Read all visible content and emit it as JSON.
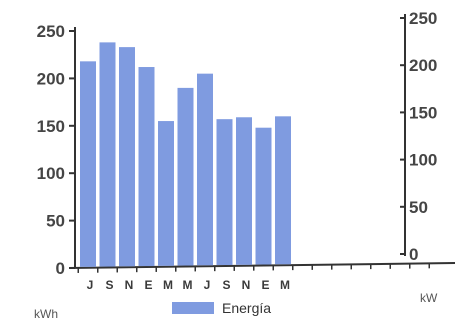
{
  "chart_data": {
    "type": "bar",
    "categories": [
      "J",
      "S",
      "N",
      "E",
      "M",
      "M",
      "J",
      "S",
      "N",
      "E",
      "M"
    ],
    "series": [
      {
        "name": "Energía",
        "values": [
          218,
          238,
          233,
          212,
          155,
          190,
          205,
          157,
          159,
          148,
          160
        ],
        "color": "#7f9be0"
      }
    ],
    "y_left": {
      "label": "kWh",
      "ticks": [
        0,
        50,
        100,
        150,
        200,
        250
      ],
      "ylim": [
        0,
        250
      ]
    },
    "y_right": {
      "label": "kW",
      "ticks": [
        0,
        50,
        100,
        150,
        200,
        250
      ],
      "ylim": [
        0,
        250
      ]
    },
    "legend": {
      "position": "bottom",
      "labels": [
        "Energía"
      ]
    },
    "grid": false,
    "title": "",
    "xlabel": ""
  }
}
